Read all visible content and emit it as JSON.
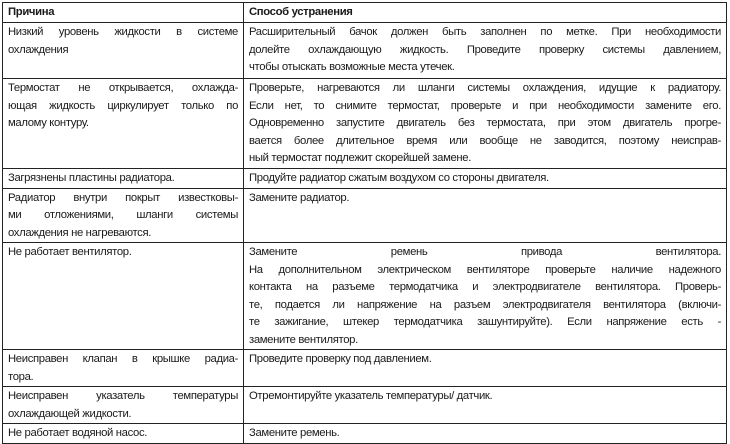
{
  "header": {
    "cause": "Причина",
    "remedy": "Способ устранения"
  },
  "rows": [
    {
      "cause": [
        "Низкий уровень жидкости в системе",
        "охлаждения"
      ],
      "remedy": [
        "Расширительный бачок должен быть заполнен по метке. При необходимости",
        "долейте охлаждающую жидкость. Проведите проверку системы давлением,",
        "чтобы отыскать возможные места утечек."
      ],
      "h": 54
    },
    {
      "cause": [
        "Термостат не открывается, охлажда-",
        "ющая жидкость циркулирует только по",
        "малому контуру."
      ],
      "remedy": [
        "Проверьте, нагреваются ли шланги системы охлаждения, идущие к радиатору.",
        "Если  нет, то снимите термостат, проверьте и при необходимости замените его.",
        "Одновременно запустите двигатель без термостата, при этом двигатель прогре-",
        "вается более длительное время или вообще не заводится, поэтому неисправ-",
        "ный термостат подлежит скорейшей замене."
      ],
      "h": 88
    },
    {
      "cause": [
        "Загрязнены пластины радиатора."
      ],
      "remedy": [
        "Продуйте радиатор сжатым воздухом со стороны двигателя."
      ],
      "h": 16
    },
    {
      "cause": [
        "Радиатор внутри покрыт известковы-",
        "ми отложениями, шланги системы",
        "охлаждения не нагреваются."
      ],
      "remedy": [
        "Замените радиатор."
      ],
      "h": 48
    },
    {
      "cause": [
        "Не работает вентилятор."
      ],
      "remedy": [
        "Замените ремень привода вентилятора.",
        "На дополнительном электрическом вентиляторе проверьте наличие надежного",
        "контакта на разъеме термодатчика и электродвигателе вентилятора. Проверь-",
        "те, подается ли напряжение на разъем электродвигателя вентилятора (включи-",
        "те зажигание, штекер термодатчика зашунтируйте). Если напряжение есть -",
        "замените вентилятор."
      ],
      "h": 100
    },
    {
      "cause": [
        "Неисправен клапан в крышке радиа-",
        "тора."
      ],
      "remedy": [
        "Проведите проверку под давлением."
      ],
      "h": 34
    },
    {
      "cause": [
        "Неисправен указатель температуры",
        "охлаждающей жидкости."
      ],
      "remedy": [
        "Отремонтируйте указатель температуры/ датчик."
      ],
      "h": 34
    },
    {
      "cause": [
        "Не работает водяной насос."
      ],
      "remedy": [
        "Замените ремень."
      ],
      "h": 16
    }
  ]
}
